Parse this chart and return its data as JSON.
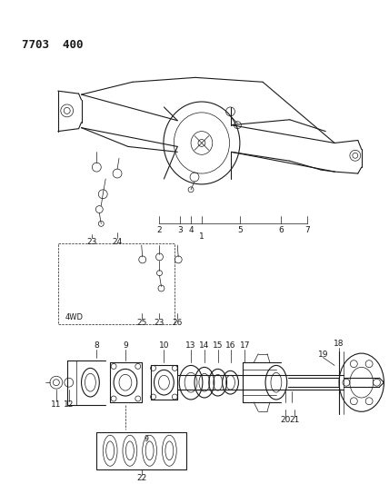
{
  "title": "7703  400",
  "bg_color": "#ffffff",
  "line_color": "#1a1a1a",
  "title_fontsize": 9,
  "label_fontsize": 6.5
}
